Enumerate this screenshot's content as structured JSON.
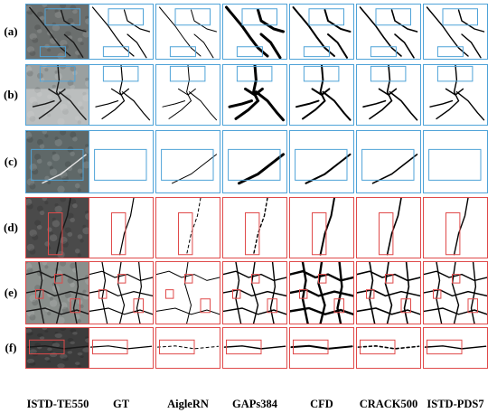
{
  "row_labels": [
    "(a)",
    "(b)",
    "(c)",
    "(d)",
    "(e)",
    "(f)"
  ],
  "column_labels": [
    "ISTD-TE550",
    "GT",
    "AigleRN",
    "GAPs384",
    "CFD",
    "CRACK500",
    "ISTD-PDS7"
  ],
  "colors": {
    "blue_frame": "#4fa3d8",
    "red_frame": "#e04a4a",
    "crack": "#000000"
  }
}
